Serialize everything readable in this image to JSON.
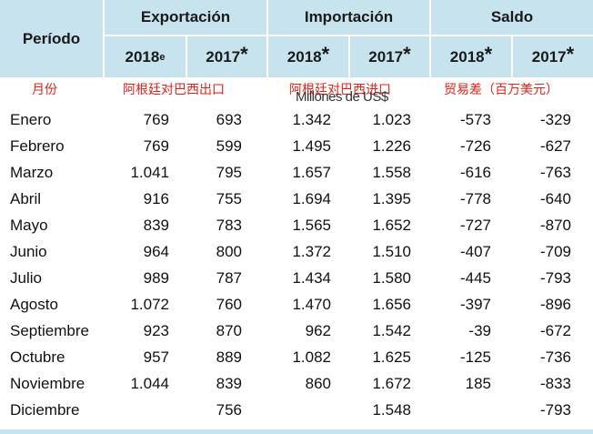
{
  "table": {
    "groups": [
      "Exportación",
      "Importación",
      "Saldo"
    ],
    "period_header": "Período",
    "subheaders": [
      {
        "year": "2018",
        "mark": "e"
      },
      {
        "year": "2017",
        "mark": "*"
      },
      {
        "year": "2018",
        "mark": "*"
      },
      {
        "year": "2017",
        "mark": "*"
      },
      {
        "year": "2018",
        "mark": "*"
      },
      {
        "year": "2017",
        "mark": "*"
      }
    ],
    "annotations": [
      "月份",
      "阿根廷对巴西出口",
      "阿根廷对巴西进口",
      "贸易差（百万美元）"
    ],
    "units": "Millones de US$",
    "rows": [
      [
        "Enero",
        "769",
        "693",
        "1.342",
        "1.023",
        "-573",
        "-329"
      ],
      [
        "Febrero",
        "769",
        "599",
        "1.495",
        "1.226",
        "-726",
        "-627"
      ],
      [
        "Marzo",
        "1.041",
        "795",
        "1.657",
        "1.558",
        "-616",
        "-763"
      ],
      [
        "Abril",
        "916",
        "755",
        "1.694",
        "1.395",
        "-778",
        "-640"
      ],
      [
        "Mayo",
        "839",
        "783",
        "1.565",
        "1.652",
        "-727",
        "-870"
      ],
      [
        "Junio",
        "964",
        "800",
        "1.372",
        "1.510",
        "-407",
        "-709"
      ],
      [
        "Julio",
        "989",
        "787",
        "1.434",
        "1.580",
        "-445",
        "-793"
      ],
      [
        "Agosto",
        "1.072",
        "760",
        "1.470",
        "1.656",
        "-397",
        "-896"
      ],
      [
        "Septiembre",
        "923",
        "870",
        "962",
        "1.542",
        "-39",
        "-672"
      ],
      [
        "Octubre",
        "957",
        "889",
        "1.082",
        "1.625",
        "-125",
        "-736"
      ],
      [
        "Noviembre",
        "1.044",
        "839",
        "860",
        "1.672",
        "185",
        "-833"
      ],
      [
        "Diciembre",
        null,
        "756",
        null,
        "1.548",
        null,
        "-793"
      ]
    ]
  }
}
